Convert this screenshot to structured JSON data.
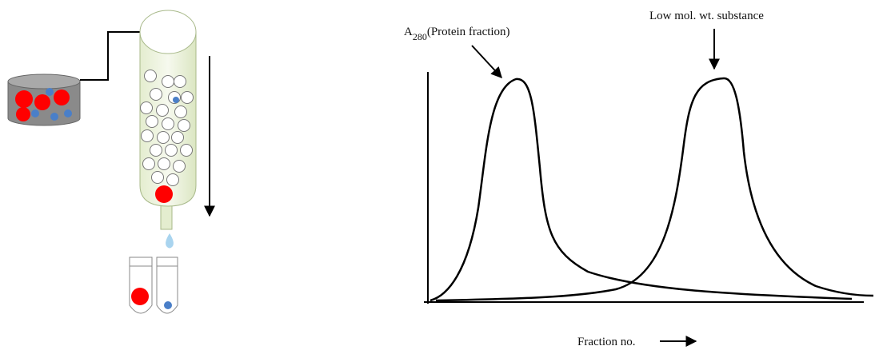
{
  "labels": {
    "protein_peak": {
      "main": "A",
      "subscript": "280",
      "rest": "(Protein fraction)"
    },
    "small_peak": "Low mol. wt. substance",
    "x_axis": "Fraction no."
  }
}
